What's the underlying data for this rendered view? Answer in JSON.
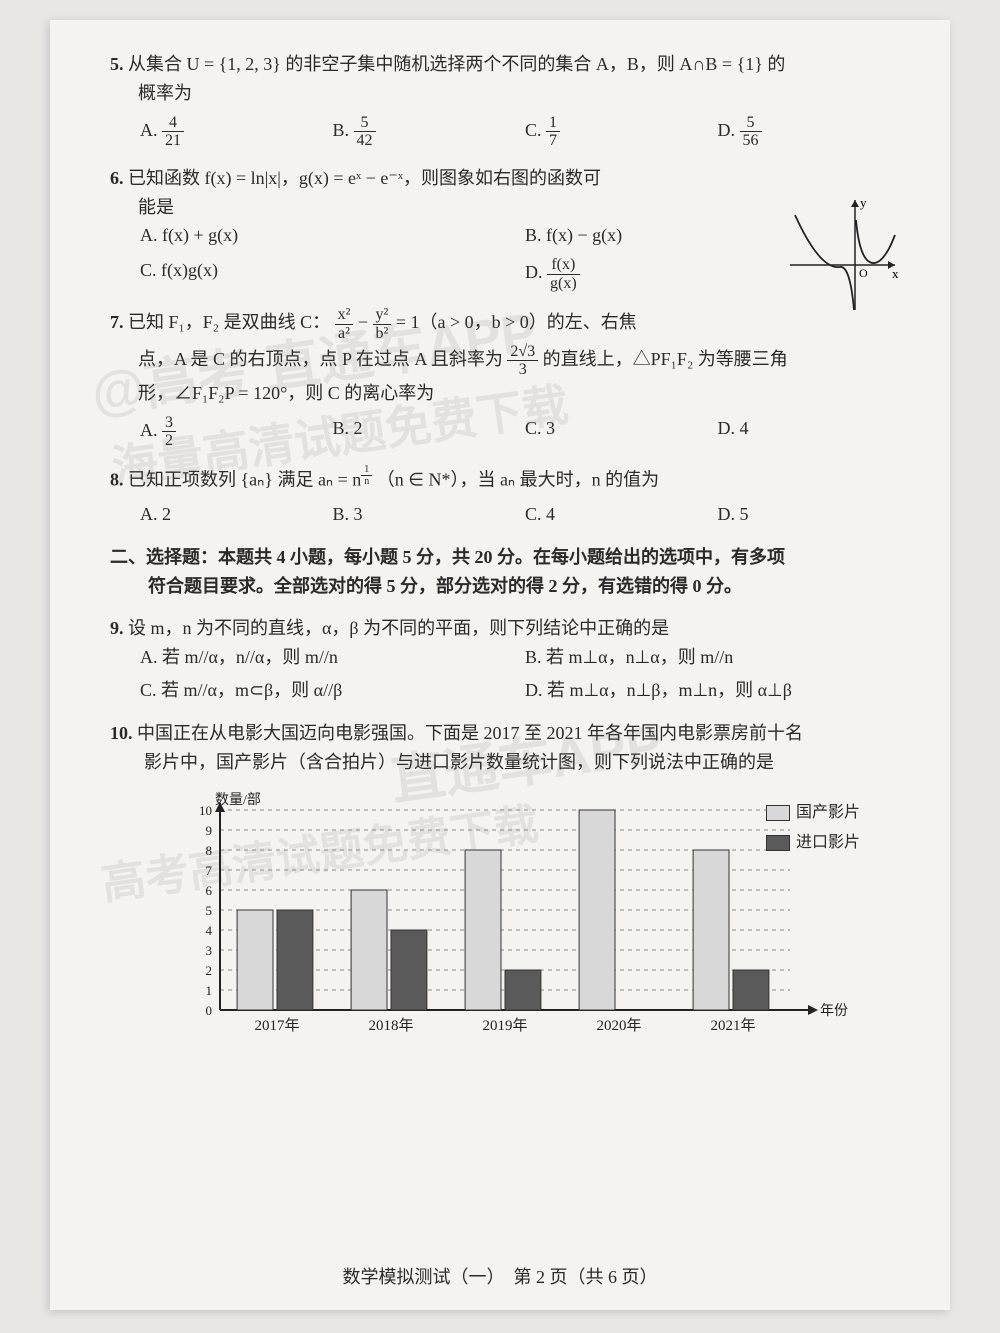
{
  "q5": {
    "num": "5.",
    "text1": "从集合 U = {1, 2, 3} 的非空子集中随机选择两个不同的集合 A，B，则 A∩B = {1} 的",
    "text2": "概率为",
    "A": "A. ",
    "An": "4",
    "Ad": "21",
    "B": "B. ",
    "Bn": "5",
    "Bd": "42",
    "C": "C. ",
    "Cn": "1",
    "Cd": "7",
    "D": "D. ",
    "Dn": "5",
    "Dd": "56"
  },
  "q6": {
    "num": "6.",
    "text1": "已知函数 f(x) = ln|x|，g(x) = eˣ − e⁻ˣ，则图象如右图的函数可",
    "text2": "能是",
    "A": "A.  f(x) + g(x)",
    "B": "B.  f(x) − g(x)",
    "C": "C.  f(x)g(x)",
    "D": "D. ",
    "Dn": "f(x)",
    "Dd": "g(x)",
    "axis_x": "x",
    "axis_y": "y",
    "origin": "O"
  },
  "q7": {
    "num": "7.",
    "t1": "已知 F₁，F₂ 是双曲线 C：",
    "frac1n": "x²",
    "frac1d": "a²",
    "minus": " − ",
    "frac2n": "y²",
    "frac2d": "b²",
    "t2": " = 1（a > 0，b > 0）的左、右焦",
    "t3": "点，A 是 C 的右顶点，点 P 在过点 A 且斜率为 ",
    "frac3n": "2√3",
    "frac3d": "3",
    "t4": " 的直线上，△PF₁F₂ 为等腰三角",
    "t5": "形，∠F₁F₂P = 120°，则 C 的离心率为",
    "A": "A. ",
    "An": "3",
    "Ad": "2",
    "B": "B.  2",
    "C": "C.  3",
    "D": "D.  4"
  },
  "q8": {
    "num": "8.",
    "t1": "已知正项数列 {aₙ} 满足 aₙ = n",
    "exp_n": "1",
    "exp_d": "n",
    "t2": "（n ∈ N*），当 aₙ 最大时，n 的值为",
    "A": "A.  2",
    "B": "B.  3",
    "C": "C.  4",
    "D": "D.  5"
  },
  "section2": {
    "head": "二、选择题：本题共 4 小题，每小题 5 分，共 20 分。在每小题给出的选项中，有多项",
    "head2": "符合题目要求。全部选对的得 5 分，部分选对的得 2 分，有选错的得 0 分。"
  },
  "q9": {
    "num": "9.",
    "t1": "设 m，n 为不同的直线，α，β 为不同的平面，则下列结论中正确的是",
    "A": "A. 若 m//α，n//α，则 m//n",
    "B": "B. 若 m⊥α，n⊥α，则 m//n",
    "C": "C. 若 m//α，m⊂β，则 α//β",
    "D": "D. 若 m⊥α，n⊥β，m⊥n，则 α⊥β"
  },
  "q10": {
    "num": "10.",
    "t1": "中国正在从电影大国迈向电影强国。下面是 2017 至 2021 年各年国内电影票房前十名",
    "t2": "影片中，国产影片（含合拍片）与进口影片数量统计图，则下列说法中正确的是"
  },
  "chart": {
    "type": "bar",
    "ylabel": "数量/部",
    "xlabel": "年份",
    "categories": [
      "2017年",
      "2018年",
      "2019年",
      "2020年",
      "2021年"
    ],
    "series": [
      {
        "name": "国产影片",
        "color": "#d8d8d8",
        "values": [
          5,
          6,
          8,
          10,
          8
        ]
      },
      {
        "name": "进口影片",
        "color": "#5a5a5a",
        "values": [
          5,
          4,
          2,
          0,
          2
        ]
      }
    ],
    "ylim": [
      0,
      10
    ],
    "yticks": [
      0,
      1,
      2,
      3,
      4,
      5,
      6,
      7,
      8,
      9,
      10
    ],
    "bar_width": 0.35,
    "grid_color": "#888",
    "axis_color": "#222",
    "background": "#f5f3f0",
    "label_fontsize": 14
  },
  "footer": {
    "text": "数学模拟测试（一）　第 2 页（共 6 页）"
  },
  "watermarks": {
    "w1": "@高考 直通车APP",
    "w2": "海量高清试题免费下载",
    "w3": "直通车APP",
    "w4": "高考高清试题免费下载"
  }
}
